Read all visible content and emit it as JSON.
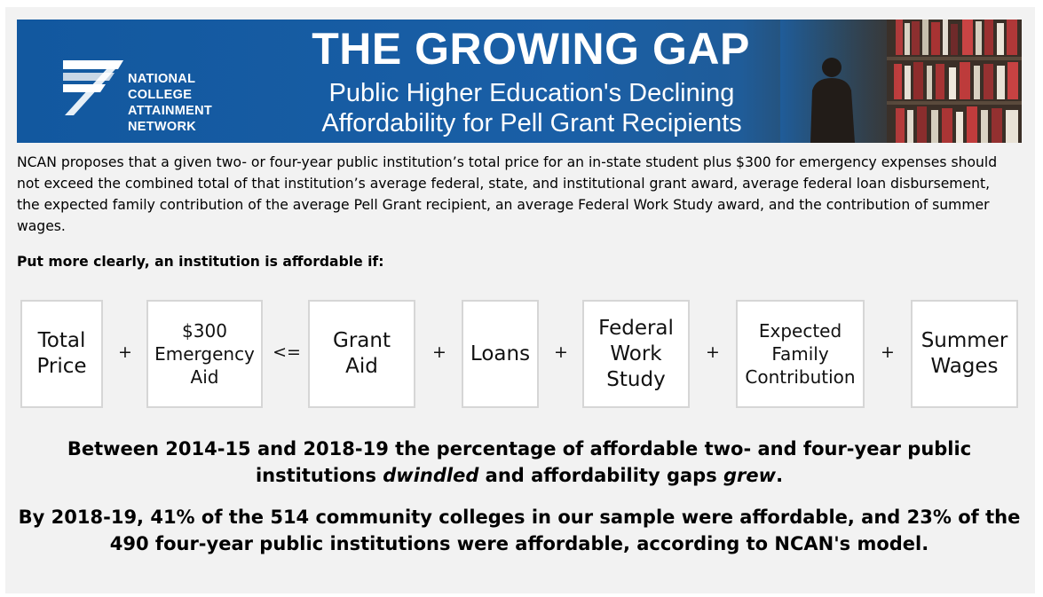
{
  "banner": {
    "org_lines": [
      "NATIONAL",
      "COLLEGE",
      "ATTAINMENT",
      "NETWORK"
    ],
    "title": "THE GROWING GAP",
    "subtitle_lines": [
      "Public Higher Education's Declining",
      "Affordability for Pell Grant Recipients"
    ]
  },
  "intro": "NCAN proposes that a given two- or four-year public institution’s total price for an in-state student plus $300 for emergency expenses should not exceed the combined total of that institution’s average federal, state, and institutional grant award, average federal loan disbursement, the expected family contribution of the average Pell Grant recipient, an average Federal Work Study award, and the contribution of summer wages.",
  "lead": "Put more clearly, an institution is affordable if:",
  "formula": {
    "total_price": [
      "Total",
      "Price"
    ],
    "emergency": [
      "$300",
      "Emergency",
      "Aid"
    ],
    "grant": [
      "Grant",
      "Aid"
    ],
    "loans": [
      "Loans"
    ],
    "work_study": [
      "Federal",
      "Work",
      "Study"
    ],
    "efc": [
      "Expected",
      "Family",
      "Contribution"
    ],
    "wages": [
      "Summer",
      "Wages"
    ],
    "plus": "+",
    "lte": "<="
  },
  "conclusion1": {
    "part1": "Between 2014-15 and 2018-19 the percentage of affordable two- and four-year public institutions ",
    "em1": "dwindled",
    "part2": " and affordability gaps ",
    "em2": "grew",
    "part3": "."
  },
  "conclusion2": "By 2018-19, 41% of the 514 community colleges in our sample were affordable, and 23% of the 490 four-year public institutions were affordable, according to NCAN's model.",
  "colors": {
    "banner_blue": "#12589f",
    "panel_bg": "#f2f2f2",
    "box_border": "#d6d6d6"
  },
  "icons": {
    "logo": "ncan-chevron-logo-icon",
    "photo": "library-student-photo"
  }
}
